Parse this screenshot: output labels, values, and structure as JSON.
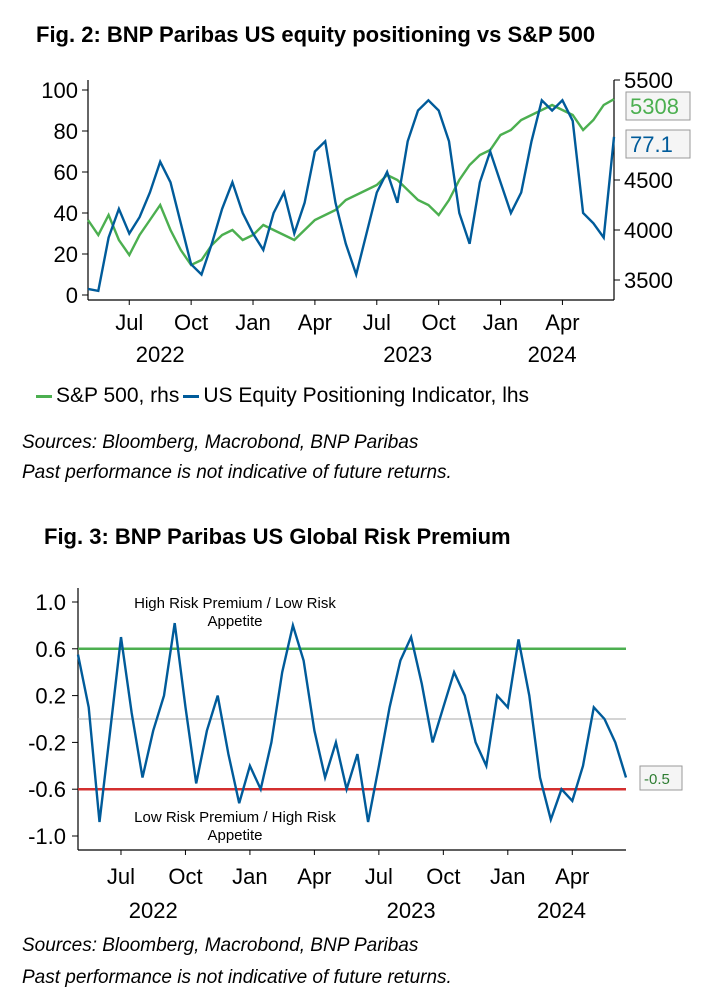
{
  "fig2": {
    "title": "Fig. 2: BNP Paribas US equity positioning vs S&P 500",
    "legend": [
      {
        "label": "S&P 500, rhs",
        "color": "#4caf50"
      },
      {
        "label": "US Equity Positioning Indicator, lhs",
        "color": "#005b9a"
      }
    ],
    "sources": "Sources: Bloomberg, Macrobond, BNP Paribas",
    "disclaimer": "Past performance is not indicative of future returns."
  },
  "fig3": {
    "title": "Fig. 3: BNP Paribas US Global Risk Premium",
    "sources": "Sources: Bloomberg, Macrobond, BNP Paribas",
    "disclaimer": "Past performance is not indicative of future returns."
  },
  "chart_data": [
    {
      "type": "line",
      "title": "Fig. 2: BNP Paribas US equity positioning vs S&P 500",
      "xlabel": "",
      "x_range": [
        "2022-05",
        "2024-06"
      ],
      "x_ticks": [
        "Jul",
        "Oct",
        "Jan",
        "Apr",
        "Jul",
        "Oct",
        "Jan",
        "Apr"
      ],
      "year_labels": [
        "2022",
        "2023",
        "2024"
      ],
      "ylim_left": [
        0,
        100
      ],
      "yticks_left": [
        "0",
        "20",
        "40",
        "60",
        "80",
        "100"
      ],
      "ylim_right": [
        3300,
        5500
      ],
      "yticks_right": [
        "3500",
        "4000",
        "4500",
        "5500"
      ],
      "end_labels": {
        "sp500": "5308",
        "positioning": "77.1"
      },
      "series": [
        {
          "name": "US Equity Positioning Indicator, lhs",
          "axis": "left",
          "color": "#005b9a",
          "x": [
            0,
            0.5,
            1,
            1.5,
            2,
            2.5,
            3,
            3.5,
            4,
            4.5,
            5,
            5.5,
            6,
            6.5,
            7,
            7.5,
            8,
            8.5,
            9,
            9.5,
            10,
            10.5,
            11,
            11.5,
            12,
            12.5,
            13,
            13.5,
            14,
            14.5,
            15,
            15.5,
            16,
            16.5,
            17,
            17.5,
            18,
            18.5,
            19,
            19.5,
            20,
            20.5,
            21,
            21.5,
            22,
            22.5,
            23,
            23.5,
            24,
            24.5,
            25,
            25.5
          ],
          "values": [
            3,
            2,
            28,
            42,
            30,
            38,
            50,
            65,
            55,
            35,
            15,
            10,
            25,
            42,
            55,
            40,
            30,
            22,
            40,
            50,
            30,
            45,
            70,
            75,
            45,
            25,
            10,
            30,
            50,
            60,
            45,
            75,
            90,
            95,
            90,
            75,
            40,
            25,
            55,
            70,
            55,
            40,
            50,
            75,
            95,
            90,
            95,
            85,
            40,
            35,
            28,
            77.1
          ]
        },
        {
          "name": "S&P 500, rhs",
          "axis": "right",
          "color": "#4caf50",
          "x": [
            0,
            0.5,
            1,
            1.5,
            2,
            2.5,
            3,
            3.5,
            4,
            4.5,
            5,
            5.5,
            6,
            6.5,
            7,
            7.5,
            8,
            8.5,
            9,
            9.5,
            10,
            10.5,
            11,
            11.5,
            12,
            12.5,
            13,
            13.5,
            14,
            14.5,
            15,
            15.5,
            16,
            16.5,
            17,
            17.5,
            18,
            18.5,
            19,
            19.5,
            20,
            20.5,
            21,
            21.5,
            22,
            22.5,
            23,
            23.5,
            24,
            24.5,
            25,
            25.5
          ],
          "values": [
            4100,
            3950,
            4150,
            3900,
            3750,
            3950,
            4100,
            4250,
            4000,
            3800,
            3650,
            3700,
            3850,
            3950,
            4000,
            3900,
            3950,
            4050,
            4000,
            3950,
            3900,
            4000,
            4100,
            4150,
            4200,
            4300,
            4350,
            4400,
            4450,
            4550,
            4500,
            4400,
            4300,
            4250,
            4150,
            4300,
            4500,
            4650,
            4750,
            4800,
            4950,
            5000,
            5100,
            5150,
            5200,
            5250,
            5200,
            5150,
            5000,
            5100,
            5250,
            5308
          ]
        }
      ]
    },
    {
      "type": "line",
      "title": "Fig. 3: BNP Paribas US Global Risk Premium",
      "x_range": [
        "2022-05",
        "2024-06"
      ],
      "x_ticks": [
        "Jul",
        "Oct",
        "Jan",
        "Apr",
        "Jul",
        "Oct",
        "Jan",
        "Apr"
      ],
      "year_labels": [
        "2022",
        "2023",
        "2024"
      ],
      "ylim": [
        -1.0,
        1.0
      ],
      "yticks": [
        "1.0",
        "0.6",
        "0.2",
        "-0.2",
        "-0.6",
        "-1.0"
      ],
      "reference_lines": [
        {
          "value": 0.6,
          "color": "#4caf50",
          "label": "High Risk Premium / Low Risk Appetite"
        },
        {
          "value": 0.0,
          "color": "#aaaaaa",
          "label": ""
        },
        {
          "value": -0.6,
          "color": "#d32f2f",
          "label": "Low Risk Premium / High Risk Appetite"
        }
      ],
      "end_label": "-0.5",
      "series": [
        {
          "name": "US Global Risk Premium",
          "color": "#005b9a",
          "x": [
            0,
            0.5,
            1,
            1.5,
            2,
            2.5,
            3,
            3.5,
            4,
            4.5,
            5,
            5.5,
            6,
            6.5,
            7,
            7.5,
            8,
            8.5,
            9,
            9.5,
            10,
            10.5,
            11,
            11.5,
            12,
            12.5,
            13,
            13.5,
            14,
            14.5,
            15,
            15.5,
            16,
            16.5,
            17,
            17.5,
            18,
            18.5,
            19,
            19.5,
            20,
            20.5,
            21,
            21.5,
            22,
            22.5,
            23,
            23.5,
            24,
            24.5,
            25,
            25.5
          ],
          "values": [
            0.55,
            0.1,
            -0.88,
            -0.1,
            0.7,
            0.05,
            -0.5,
            -0.1,
            0.2,
            0.82,
            0.1,
            -0.55,
            -0.1,
            0.2,
            -0.3,
            -0.72,
            -0.4,
            -0.6,
            -0.2,
            0.4,
            0.8,
            0.5,
            -0.1,
            -0.5,
            -0.2,
            -0.6,
            -0.3,
            -0.88,
            -0.4,
            0.1,
            0.5,
            0.7,
            0.3,
            -0.2,
            0.1,
            0.4,
            0.2,
            -0.2,
            -0.4,
            0.2,
            0.1,
            0.68,
            0.2,
            -0.5,
            -0.86,
            -0.6,
            -0.7,
            -0.4,
            0.1,
            0.0,
            -0.2,
            -0.5
          ]
        }
      ]
    }
  ]
}
